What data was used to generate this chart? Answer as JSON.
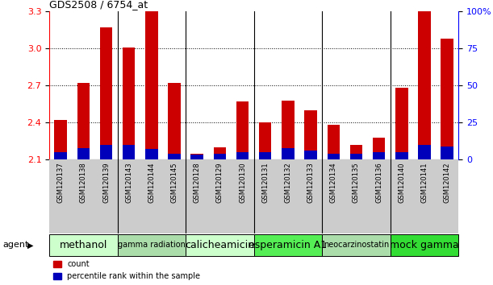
{
  "title": "GDS2508 / 6754_at",
  "samples": [
    "GSM120137",
    "GSM120138",
    "GSM120139",
    "GSM120143",
    "GSM120144",
    "GSM120145",
    "GSM120128",
    "GSM120129",
    "GSM120130",
    "GSM120131",
    "GSM120132",
    "GSM120133",
    "GSM120134",
    "GSM120135",
    "GSM120136",
    "GSM120140",
    "GSM120141",
    "GSM120142"
  ],
  "count_values": [
    2.42,
    2.72,
    3.17,
    3.01,
    3.3,
    2.72,
    2.14,
    2.2,
    2.57,
    2.4,
    2.58,
    2.5,
    2.38,
    2.22,
    2.28,
    2.68,
    3.3,
    3.08
  ],
  "percentile_values": [
    5,
    8,
    10,
    10,
    7,
    4,
    4,
    4,
    5,
    5,
    8,
    6,
    4,
    4,
    5,
    5,
    10,
    9
  ],
  "ylim_left": [
    2.1,
    3.3
  ],
  "ylim_right": [
    0,
    100
  ],
  "yticks_left": [
    2.1,
    2.4,
    2.7,
    3.0,
    3.3
  ],
  "yticks_right": [
    0,
    25,
    50,
    75,
    100
  ],
  "ytick_labels_right": [
    "0",
    "25",
    "50",
    "75",
    "100%"
  ],
  "bar_color_red": "#cc0000",
  "bar_color_blue": "#0000bb",
  "agent_groups": [
    {
      "label": "methanol",
      "n": 3,
      "color": "#ccffcc",
      "fontsize": 9
    },
    {
      "label": "gamma radiation",
      "n": 3,
      "color": "#aaddaa",
      "fontsize": 7
    },
    {
      "label": "calicheamicin",
      "n": 3,
      "color": "#ccffcc",
      "fontsize": 9
    },
    {
      "label": "esperamicin A1",
      "n": 3,
      "color": "#55ee55",
      "fontsize": 9
    },
    {
      "label": "neocarzinostatin",
      "n": 3,
      "color": "#aaddaa",
      "fontsize": 7
    },
    {
      "label": "mock gamma",
      "n": 3,
      "color": "#33dd33",
      "fontsize": 9
    }
  ],
  "bar_width": 0.55,
  "plot_bg": "#ffffff",
  "tick_area_bg": "#cccccc"
}
